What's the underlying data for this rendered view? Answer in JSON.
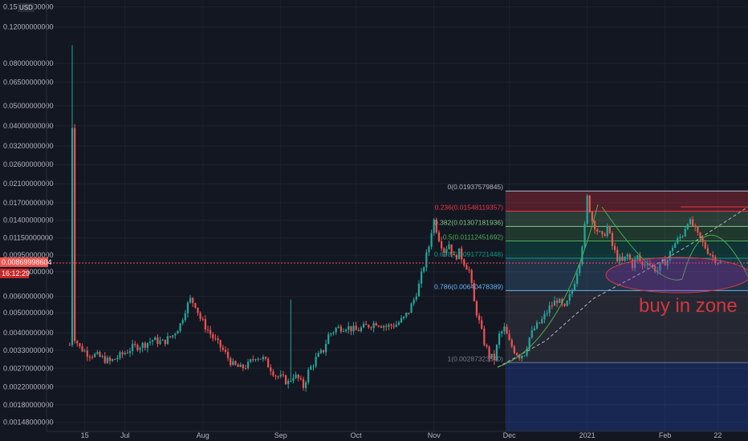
{
  "currency": "USD",
  "price_badge": "0.00869998604",
  "time_badge": "16:12:29",
  "annotation": "buy in zone",
  "colors": {
    "background": "#131722",
    "up": "#26a69a",
    "down": "#ef5350",
    "grid": "#1e222d",
    "text": "#b2b5be",
    "annotation": "#e0393e"
  },
  "chart_data": {
    "type": "candlestick",
    "title": "",
    "y_scale": "log",
    "ylim": [
      0.00128,
      0.155
    ],
    "y_ticks": [
      {
        "value": 0.15,
        "label": "0.15000000000"
      },
      {
        "value": 0.12,
        "label": "0.12000000000"
      },
      {
        "value": 0.08,
        "label": "0.08000000000"
      },
      {
        "value": 0.065,
        "label": "0.06500000000"
      },
      {
        "value": 0.05,
        "label": "0.05000000000"
      },
      {
        "value": 0.04,
        "label": "0.04000000000"
      },
      {
        "value": 0.032,
        "label": "0.03200000000"
      },
      {
        "value": 0.026,
        "label": "0.02600000000"
      },
      {
        "value": 0.021,
        "label": "0.02100000000"
      },
      {
        "value": 0.017,
        "label": "0.01700000000"
      },
      {
        "value": 0.014,
        "label": "0.01400000000"
      },
      {
        "value": 0.0115,
        "label": "0.01150000000"
      },
      {
        "value": 0.0095,
        "label": "0.00950000000"
      },
      {
        "value": 0.0079,
        "label": "0.00790000000"
      },
      {
        "value": 0.006,
        "label": "0.00600000000"
      },
      {
        "value": 0.005,
        "label": "0.00500000000"
      },
      {
        "value": 0.004,
        "label": "0.00400000000"
      },
      {
        "value": 0.0033,
        "label": "0.00330000000"
      },
      {
        "value": 0.0027,
        "label": "0.00270000000"
      },
      {
        "value": 0.0022,
        "label": "0.00220000000"
      },
      {
        "value": 0.0018,
        "label": "0.00180000000"
      },
      {
        "value": 0.00148,
        "label": "0.00148000000"
      }
    ],
    "x_ticks": [
      {
        "day": 15,
        "label": "15"
      },
      {
        "day": 31,
        "label": "Jul"
      },
      {
        "day": 62,
        "label": "Aug"
      },
      {
        "day": 93,
        "label": "Sep"
      },
      {
        "day": 123,
        "label": "Oct"
      },
      {
        "day": 154,
        "label": "Nov"
      },
      {
        "day": 184,
        "label": "Dec"
      },
      {
        "day": 215,
        "label": "2021"
      },
      {
        "day": 246,
        "label": "Feb"
      },
      {
        "day": 267,
        "label": "22"
      }
    ],
    "price_line": 0.00869998604,
    "fibonacci": [
      {
        "ratio": "0",
        "value": 0.01937579845,
        "label": "0(0.01937579845)",
        "color": "#b2b5be"
      },
      {
        "ratio": "0.236",
        "value": 0.01548119357,
        "label": "0.236(0.01548119357)",
        "color": "#f23645"
      },
      {
        "ratio": "0.382",
        "value": 0.01307181936,
        "label": "0.382(0.01307181936)",
        "color": "#81c784"
      },
      {
        "ratio": "0.5",
        "value": 0.01112451692,
        "label": "0.5(0.01112451692)",
        "color": "#4caf50"
      },
      {
        "ratio": "0.618",
        "value": 0.00917721448,
        "label": "0.618(0.00917721448)",
        "color": "#089981"
      },
      {
        "ratio": "0.786",
        "value": 0.00640478389,
        "label": "0.786(0.00640478389)",
        "color": "#64b5f6"
      },
      {
        "ratio": "1",
        "value": 0.0028732354,
        "label": "1(0.00287323540)",
        "color": "#787b86"
      }
    ],
    "anchors": [
      [
        9,
        0.0035
      ],
      [
        10,
        0.04
      ],
      [
        11,
        0.0038
      ],
      [
        13,
        0.0034
      ],
      [
        16,
        0.0032
      ],
      [
        20,
        0.0031
      ],
      [
        25,
        0.0029
      ],
      [
        29,
        0.0031
      ],
      [
        34,
        0.0034
      ],
      [
        38,
        0.0035
      ],
      [
        42,
        0.0037
      ],
      [
        46,
        0.0036
      ],
      [
        50,
        0.0039
      ],
      [
        53,
        0.0044
      ],
      [
        55,
        0.0052
      ],
      [
        57,
        0.0058
      ],
      [
        59,
        0.0055
      ],
      [
        61,
        0.0047
      ],
      [
        63,
        0.0043
      ],
      [
        66,
        0.0038
      ],
      [
        70,
        0.0033
      ],
      [
        74,
        0.0028
      ],
      [
        77,
        0.0027
      ],
      [
        80,
        0.0028
      ],
      [
        83,
        0.0031
      ],
      [
        86,
        0.003
      ],
      [
        89,
        0.0027
      ],
      [
        91,
        0.0025
      ],
      [
        94,
        0.0024
      ],
      [
        96,
        0.0023
      ],
      [
        98,
        0.0025
      ],
      [
        100,
        0.0024
      ],
      [
        102,
        0.0022
      ],
      [
        104,
        0.0026
      ],
      [
        107,
        0.003
      ],
      [
        110,
        0.0033
      ],
      [
        112,
        0.0039
      ],
      [
        115,
        0.0042
      ],
      [
        119,
        0.0043
      ],
      [
        123,
        0.0041
      ],
      [
        127,
        0.0043
      ],
      [
        131,
        0.0045
      ],
      [
        135,
        0.0043
      ],
      [
        139,
        0.0044
      ],
      [
        142,
        0.0047
      ],
      [
        144,
        0.0051
      ],
      [
        146,
        0.0058
      ],
      [
        148,
        0.0068
      ],
      [
        150,
        0.0085
      ],
      [
        152,
        0.0105
      ],
      [
        153,
        0.0125
      ],
      [
        154,
        0.014
      ],
      [
        156,
        0.0115
      ],
      [
        158,
        0.01
      ],
      [
        160,
        0.0108
      ],
      [
        162,
        0.0092
      ],
      [
        164,
        0.0098
      ],
      [
        166,
        0.0088
      ],
      [
        168,
        0.008
      ],
      [
        170,
        0.0056
      ],
      [
        172,
        0.0045
      ],
      [
        174,
        0.0036
      ],
      [
        176,
        0.0031
      ],
      [
        178,
        0.003
      ],
      [
        180,
        0.0039
      ],
      [
        182,
        0.0042
      ],
      [
        184,
        0.0036
      ],
      [
        186,
        0.0033
      ],
      [
        188,
        0.0031
      ],
      [
        190,
        0.0032
      ],
      [
        192,
        0.0038
      ],
      [
        194,
        0.0042
      ],
      [
        197,
        0.0046
      ],
      [
        200,
        0.0053
      ],
      [
        203,
        0.0058
      ],
      [
        206,
        0.0052
      ],
      [
        209,
        0.0064
      ],
      [
        212,
        0.009
      ],
      [
        214,
        0.013
      ],
      [
        215,
        0.018
      ],
      [
        217,
        0.014
      ],
      [
        219,
        0.0125
      ],
      [
        221,
        0.0115
      ],
      [
        223,
        0.013
      ],
      [
        225,
        0.0105
      ],
      [
        227,
        0.0092
      ],
      [
        229,
        0.0088
      ],
      [
        231,
        0.0095
      ],
      [
        233,
        0.0085
      ],
      [
        235,
        0.0093
      ],
      [
        237,
        0.0084
      ],
      [
        239,
        0.009
      ],
      [
        241,
        0.0083
      ],
      [
        243,
        0.008
      ],
      [
        245,
        0.0087
      ],
      [
        247,
        0.009
      ],
      [
        249,
        0.0105
      ],
      [
        251,
        0.0112
      ],
      [
        253,
        0.012
      ],
      [
        255,
        0.014
      ],
      [
        257,
        0.0132
      ],
      [
        259,
        0.0118
      ],
      [
        261,
        0.0108
      ],
      [
        263,
        0.01
      ],
      [
        265,
        0.0093
      ],
      [
        268,
        0.0087
      ]
    ]
  }
}
